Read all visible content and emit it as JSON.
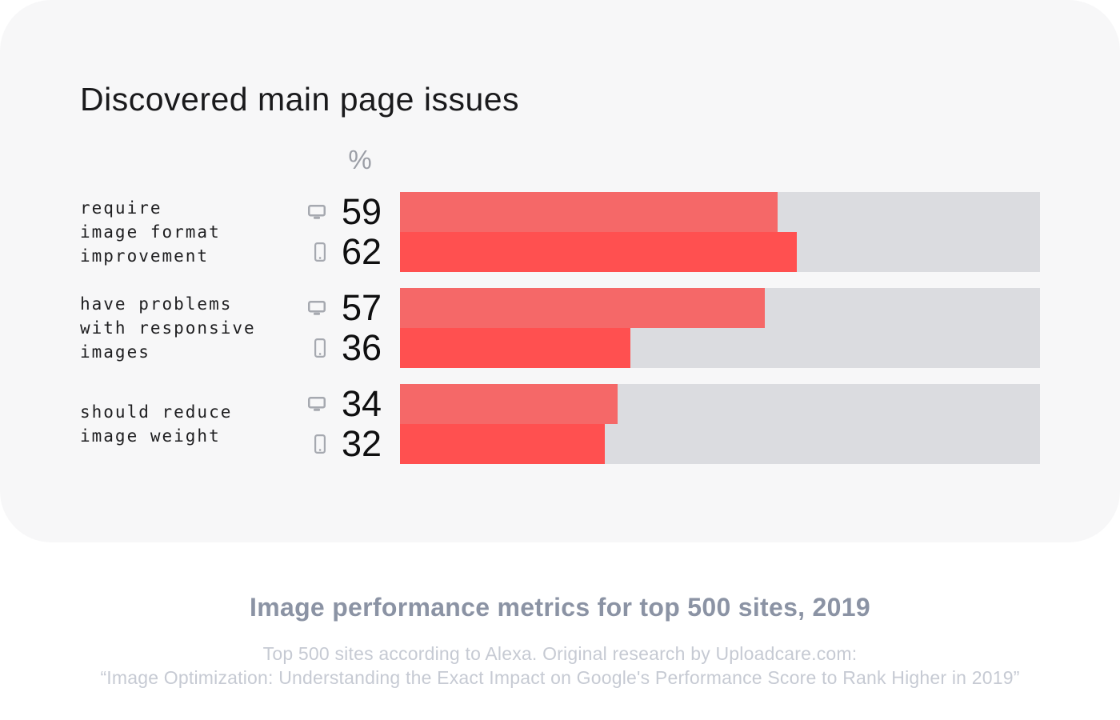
{
  "card": {
    "title": "Discovered main page issues",
    "unit_label": "%",
    "rows": [
      {
        "label": "require\nimage format\nimprovement",
        "desktop": {
          "value": 59
        },
        "mobile": {
          "value": 62
        }
      },
      {
        "label": "have problems\nwith responsive\nimages",
        "desktop": {
          "value": 57
        },
        "mobile": {
          "value": 36
        }
      },
      {
        "label": "should reduce\nimage weight",
        "desktop": {
          "value": 34
        },
        "mobile": {
          "value": 32
        }
      }
    ]
  },
  "footer": {
    "subtitle": "Image performance metrics for top 500 sites, 2019",
    "caption_line1": "Top 500 sites according to Alexa. Original research by Uploadcare.com:",
    "caption_line2": "“Image Optimization: Understanding the Exact Impact on Google's Performance Score to Rank Higher in 2019”"
  },
  "icons": {
    "desktop": "monitor-icon",
    "mobile": "smartphone-icon"
  },
  "colors": {
    "card_background": "#f7f7f8",
    "page_background": "#ffffff",
    "bar_track": "#dbdce0",
    "bar_desktop": "#f56868",
    "bar_mobile": "#ff5050",
    "icon_gray": "#a6a9b0",
    "title_text": "#1a1a1c",
    "subtitle_text": "#8b93a4",
    "caption_text": "#c6cad3",
    "unit_text": "#9b9ea6"
  },
  "chart_data": {
    "type": "bar",
    "orientation": "horizontal",
    "title": "Discovered main page issues",
    "unit": "%",
    "xlim": [
      0,
      100
    ],
    "categories": [
      "require image format improvement",
      "have problems with responsive images",
      "should reduce image weight"
    ],
    "series": [
      {
        "name": "desktop",
        "values": [
          59,
          57,
          34
        ],
        "color": "#f56868"
      },
      {
        "name": "mobile",
        "values": [
          62,
          36,
          32
        ],
        "color": "#ff5050"
      }
    ],
    "legend": "device icons (monitor = desktop, phone = mobile) with value labels left of bars",
    "grid": false
  }
}
